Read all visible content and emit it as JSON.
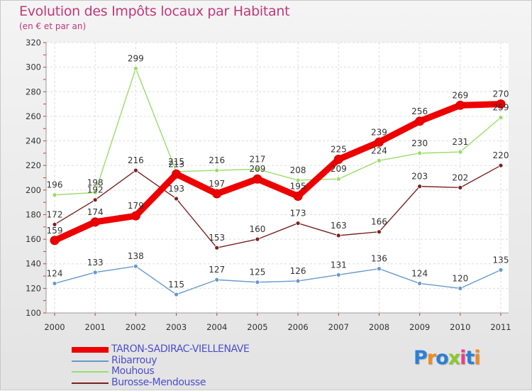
{
  "chart_data": {
    "type": "line",
    "title": "Evolution des Impôts locaux par Habitant",
    "subtitle": "(en € et par an)",
    "x": [
      "2000",
      "2001",
      "2002",
      "2003",
      "2004",
      "2005",
      "2006",
      "2007",
      "2008",
      "2009",
      "2010",
      "2011"
    ],
    "ylim": [
      100,
      320
    ],
    "yticks": [
      "100",
      "120",
      "140",
      "160",
      "180",
      "200",
      "220",
      "240",
      "260",
      "280",
      "300",
      "320"
    ],
    "series": [
      {
        "name": "TARON-SADIRAC-VIELLENAVE",
        "color": "#ee0000",
        "values": [
          159,
          174,
          179,
          213,
          197,
          209,
          195,
          225,
          239,
          256,
          269,
          270
        ]
      },
      {
        "name": "Ribarrouy",
        "color": "#6699cc",
        "values": [
          124,
          133,
          138,
          115,
          127,
          125,
          126,
          131,
          136,
          124,
          120,
          135
        ]
      },
      {
        "name": "Mouhous",
        "color": "#99dd66",
        "values": [
          196,
          198,
          299,
          215,
          216,
          217,
          208,
          209,
          224,
          230,
          231,
          259
        ]
      },
      {
        "name": "Burosse-Mendousse",
        "color": "#7a2222",
        "values": [
          172,
          192,
          216,
          193,
          153,
          160,
          173,
          163,
          166,
          203,
          202,
          220
        ]
      }
    ]
  },
  "logo": {
    "text": "Proxiti",
    "colors": [
      "#2b7fd6",
      "#f08a1e",
      "#2b7fd6",
      "#8acb2a",
      "#e83f8c",
      "#2b7fd6",
      "#f08a1e"
    ]
  }
}
